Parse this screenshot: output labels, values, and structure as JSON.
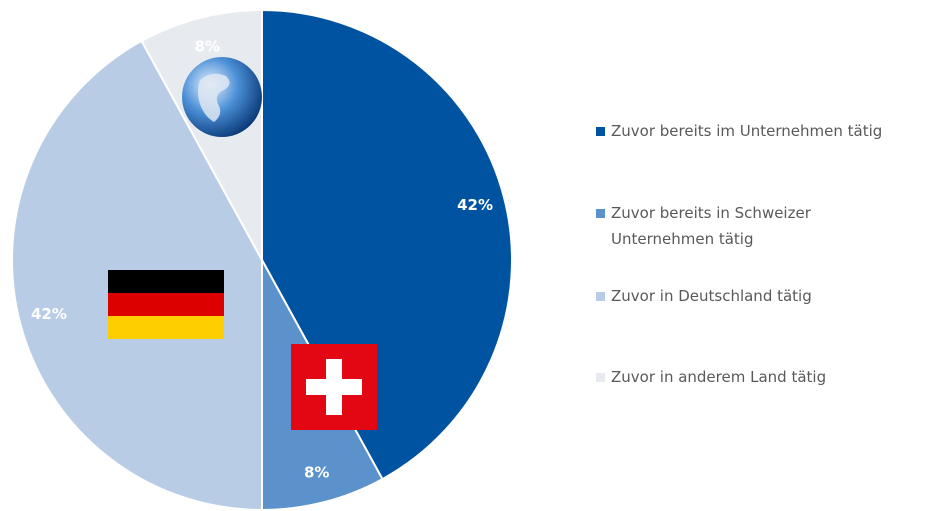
{
  "chart_data": {
    "type": "pie",
    "categories": [
      "Zuvor bereits im Unternehmen tätig",
      "Zuvor bereits in Schweizer\nUnternehmen tätig",
      "Zuvor in Deutschland tätig",
      "Zuvor in anderem Land tätig"
    ],
    "values": [
      42,
      8,
      42,
      8
    ],
    "value_labels": [
      "42%",
      "8%",
      "42%",
      "8%"
    ],
    "colors": [
      "#0053a0",
      "#5b92cc",
      "#b8cce6",
      "#e7ebef"
    ],
    "legend": "right"
  }
}
